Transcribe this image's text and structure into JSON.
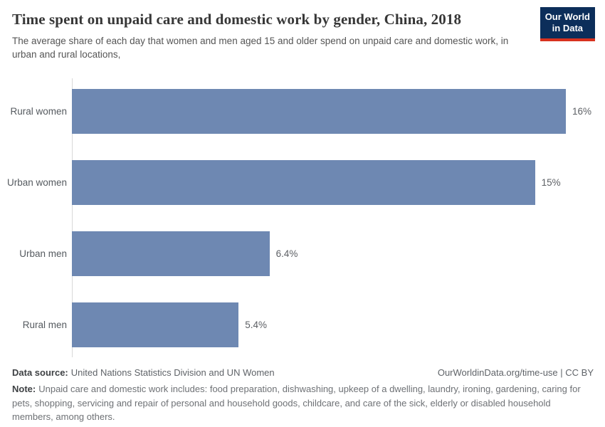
{
  "header": {
    "title": "Time spent on unpaid care and domestic work by gender, China, 2018",
    "subtitle": "The average share of each day that women and men aged 15 and older spend on unpaid care and domestic work, in urban and rural locations,",
    "logo": {
      "line1": "Our World",
      "line2": "in Data"
    }
  },
  "chart_data": {
    "type": "bar",
    "orientation": "horizontal",
    "categories": [
      "Rural women",
      "Urban women",
      "Urban men",
      "Rural men"
    ],
    "values": [
      16,
      15,
      6.4,
      5.4
    ],
    "value_labels": [
      "16%",
      "15%",
      "6.4%",
      "5.4%"
    ],
    "title": "Time spent on unpaid care and domestic work by gender, China, 2018",
    "xlabel": "",
    "ylabel": "",
    "xlim": [
      0,
      16.7
    ],
    "grid": false,
    "legend": false,
    "bar_color": "#6E88B2"
  },
  "footer": {
    "source_label": "Data source:",
    "source_text": "United Nations Statistics Division and UN Women",
    "attribution": "OurWorldinData.org/time-use | CC BY",
    "note_label": "Note:",
    "note_text": "Unpaid care and domestic work includes: food preparation, dishwashing, upkeep of a dwelling, laundry, ironing, gardening, caring for pets, shopping, servicing and repair of personal and household goods, childcare, and care of the sick, elderly or disabled household members, among others."
  },
  "colors": {
    "bar": "#6E88B2",
    "axis": "#D8D8D8",
    "logo_bg": "#0C2E5A",
    "logo_stripe": "#D8321F",
    "title_text": "#373737",
    "body_text": "#555555"
  }
}
